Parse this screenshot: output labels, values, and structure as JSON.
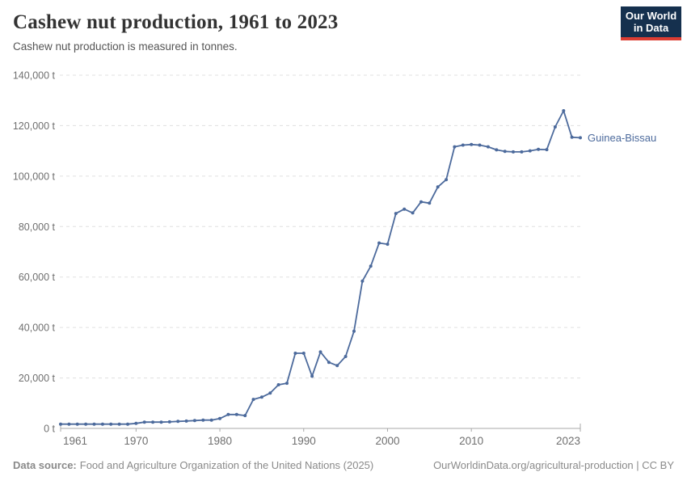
{
  "header": {
    "title": "Cashew nut production, 1961 to 2023",
    "subtitle": "Cashew nut production is measured in tonnes."
  },
  "logo": {
    "line1": "Our World",
    "line2": "in Data"
  },
  "footer": {
    "source_label": "Data source:",
    "source_text": "Food and Agriculture Organization of the United Nations (2025)",
    "right_text": "OurWorldinData.org/agricultural-production | CC BY"
  },
  "colors": {
    "line": "#4c6a9c",
    "entity_label": "#4c6a9c",
    "grid": "#e0e0e0",
    "axis": "#a8a8a8",
    "tick_text": "#6f6f6f",
    "logo_bg": "#15304e",
    "logo_accent": "#dc3d33"
  },
  "chart_data": {
    "type": "line",
    "title": "Cashew nut production, 1961 to 2023",
    "subtitle": "Cashew nut production is measured in tonnes.",
    "xlabel": "",
    "ylabel": "tonnes",
    "ylim": [
      0,
      140000
    ],
    "grid": true,
    "legend": "end-of-line-label",
    "x_ticks": [
      1961,
      1970,
      1980,
      1990,
      2000,
      2010,
      2023
    ],
    "y_ticks": [
      {
        "value": 0,
        "label": "0 t"
      },
      {
        "value": 20000,
        "label": "20,000 t"
      },
      {
        "value": 40000,
        "label": "40,000 t"
      },
      {
        "value": 60000,
        "label": "60,000 t"
      },
      {
        "value": 80000,
        "label": "80,000 t"
      },
      {
        "value": 100000,
        "label": "100,000 t"
      },
      {
        "value": 120000,
        "label": "120,000 t"
      },
      {
        "value": 140000,
        "label": "140,000 t"
      }
    ],
    "x": [
      1961,
      1962,
      1963,
      1964,
      1965,
      1966,
      1967,
      1968,
      1969,
      1970,
      1971,
      1972,
      1973,
      1974,
      1975,
      1976,
      1977,
      1978,
      1979,
      1980,
      1981,
      1982,
      1983,
      1984,
      1985,
      1986,
      1987,
      1988,
      1989,
      1990,
      1991,
      1992,
      1993,
      1994,
      1995,
      1996,
      1997,
      1998,
      1999,
      2000,
      2001,
      2002,
      2003,
      2004,
      2005,
      2006,
      2007,
      2008,
      2009,
      2010,
      2011,
      2012,
      2013,
      2014,
      2015,
      2016,
      2017,
      2018,
      2019,
      2020,
      2021,
      2022,
      2023
    ],
    "series": [
      {
        "name": "Guinea-Bissau",
        "values": [
          1700,
          1700,
          1700,
          1700,
          1700,
          1700,
          1700,
          1700,
          1700,
          2000,
          2500,
          2500,
          2500,
          2600,
          2800,
          2900,
          3100,
          3300,
          3300,
          3900,
          5500,
          5500,
          5100,
          11500,
          12400,
          14000,
          17300,
          17900,
          29800,
          29800,
          20700,
          30300,
          26200,
          24900,
          28500,
          38500,
          58400,
          64300,
          73500,
          73000,
          85200,
          86900,
          85400,
          89800,
          89300,
          95700,
          98600,
          111600,
          112300,
          112500,
          112300,
          111600,
          110400,
          109800,
          109600,
          109600,
          110000,
          110600,
          110500,
          119500,
          125900,
          115400,
          115200
        ]
      }
    ]
  }
}
